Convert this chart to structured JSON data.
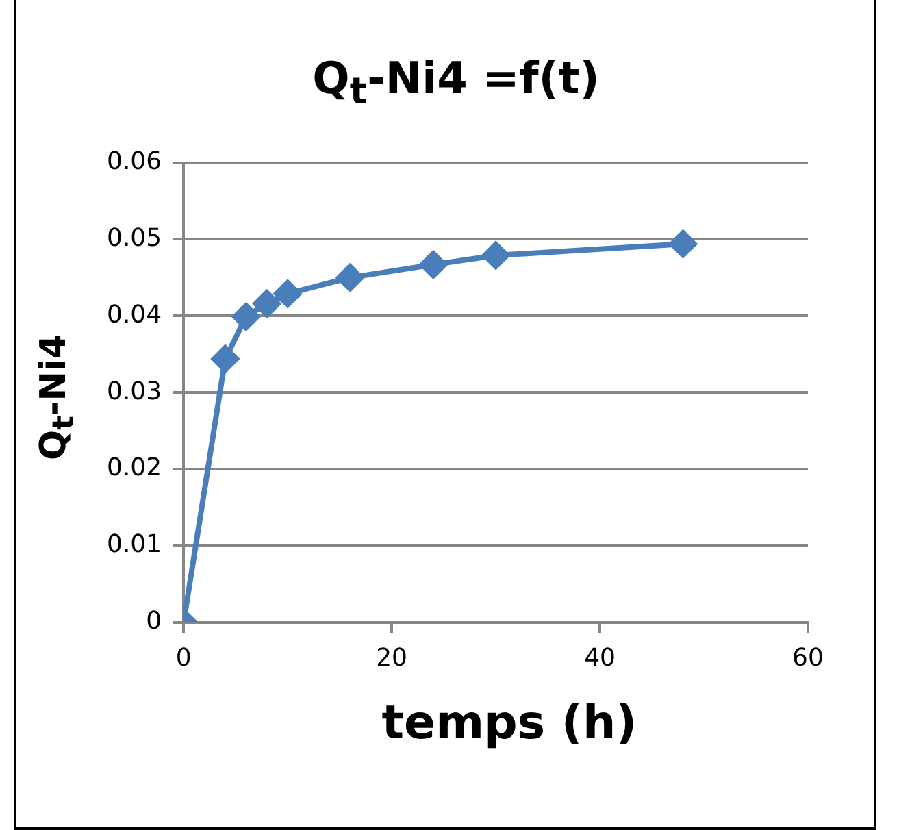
{
  "chart_data": {
    "type": "line",
    "title": "Q$_{t}$-Ni4 =f(t)",
    "xlabel": "temps (h)",
    "ylabel": "Q$_{t}$-Ni4",
    "x": [
      0,
      4,
      6,
      8,
      10,
      16,
      24,
      30,
      48
    ],
    "series": [
      {
        "color": "#4a7ebb",
        "values": [
          0,
          0.0344,
          0.0399,
          0.0416,
          0.0429,
          0.045,
          0.0467,
          0.0479,
          0.0494
        ]
      }
    ],
    "xlim": [
      0,
      60
    ],
    "xticks": [
      0,
      20,
      40,
      60
    ],
    "ylim": [
      0,
      0.06
    ],
    "yticks": [
      0,
      0.01,
      0.02,
      0.03,
      0.04,
      0.05,
      0.06
    ],
    "grid": "y",
    "legend": false,
    "marker": "diamond",
    "line_style": "solid"
  }
}
